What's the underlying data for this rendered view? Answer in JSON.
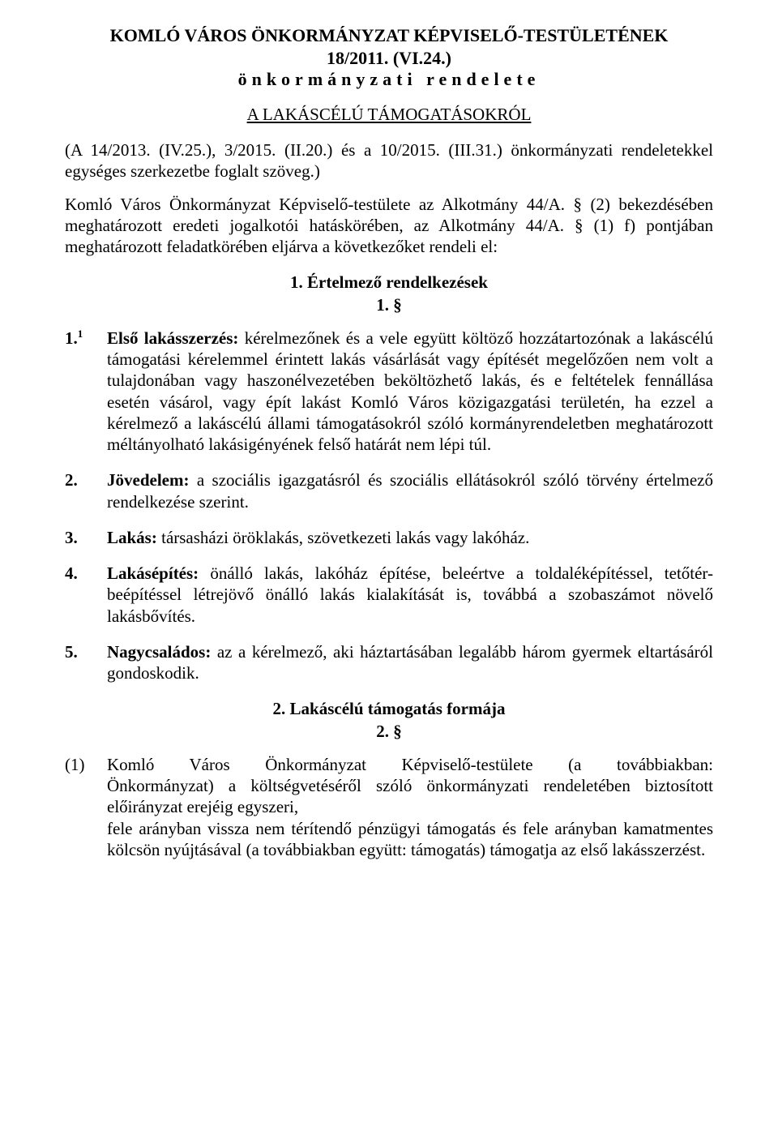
{
  "header": {
    "title_l1": "KOMLÓ VÁROS ÖNKORMÁNYZAT KÉPVISELŐ-TESTÜLETÉNEK",
    "title_l2": "18/2011. (VI.24.)",
    "title_l3": "önkormányzati rendelete",
    "subject": "A LAKÁSCÉLÚ TÁMOGATÁSOKRÓL",
    "amendments": "(A 14/2013. (IV.25.), 3/2015. (II.20.) és a 10/2015. (III.31.) önkormányzati rendeletekkel egységes szerkezetbe foglalt szöveg.)",
    "preamble": "Komló Város Önkormányzat Képviselő-testülete az Alkotmány 44/A. § (2) bekezdésében meghatározott eredeti jogalkotói hatáskörében, az Alkotmány 44/A. § (1) f) pontjában meghatározott feladatkörében eljárva a következőket rendeli el:"
  },
  "section1": {
    "heading_l1": "1. Értelmező rendelkezések",
    "heading_l2": "1. §",
    "items": [
      {
        "num": "1.",
        "sup": "1",
        "label": "Első lakásszerzés:",
        "text": " kérelmezőnek és a vele együtt költöző hozzátartozónak a lakáscélú támogatási kérelemmel érintett lakás vásárlását vagy építését megelőzően nem volt a tulajdonában vagy haszonélvezetében beköltözhető lakás, és e feltételek fennállása esetén vásárol, vagy épít lakást Komló Város közigazgatási területén, ha ezzel a kérelmező a lakáscélú állami támogatásokról szóló kormányrendeletben meghatározott méltányolható lakásigényének felső határát nem lépi túl."
      },
      {
        "num": "2.",
        "sup": "",
        "label": "Jövedelem:",
        "text": " a szociális igazgatásról és szociális ellátásokról szóló törvény értelmező rendelkezése szerint."
      },
      {
        "num": "3.",
        "sup": "",
        "label": "Lakás:",
        "text": " társasházi öröklakás, szövetkezeti lakás vagy lakóház."
      },
      {
        "num": "4.",
        "sup": "",
        "label": "Lakásépítés:",
        "text": " önálló lakás, lakóház építése, beleértve a toldaléképítéssel, tetőtér-beépítéssel létrejövő önálló lakás kialakítását is, továbbá a szobaszámot növelő lakásbővítés."
      },
      {
        "num": "5.",
        "sup": "",
        "label": "Nagycsaládos:",
        "text": " az a kérelmező, aki háztartásában legalább három gyermek eltartásáról gondoskodik."
      }
    ]
  },
  "section2": {
    "heading_l1": "2. Lakáscélú támogatás formája",
    "heading_l2": "2. §",
    "para_num": "(1)",
    "para_line1": "Komló Város Önkormányzat Képviselő-testülete (a továbbiakban:",
    "para_rest": " Önkormányzat) a költségvetéséről szóló önkormányzati rendeletében biztosított előirányzat erejéig egyszeri,",
    "para_line3": "fele arányban vissza nem térítendő pénzügyi támogatás és fele arányban kamatmentes kölcsön nyújtásával (a továbbiakban együtt: támogatás) támogatja az első lakásszerzést."
  }
}
